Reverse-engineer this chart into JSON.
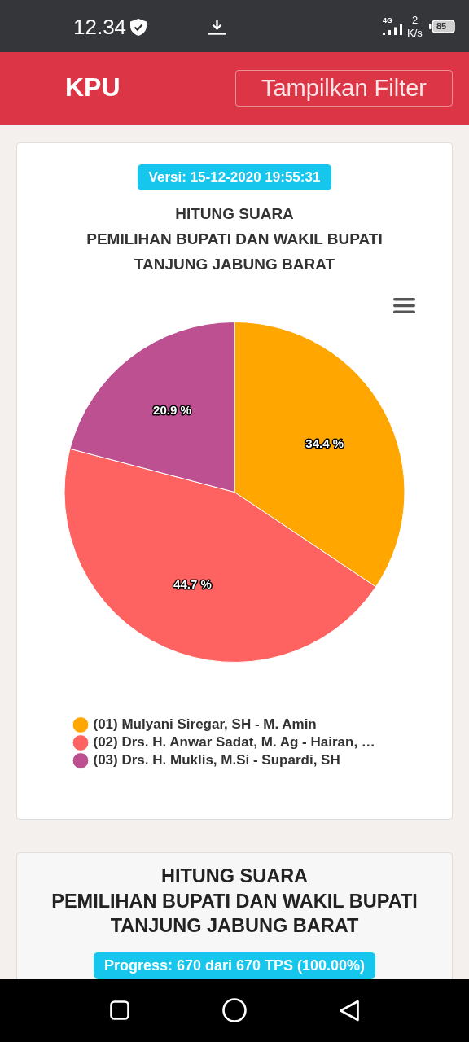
{
  "chart_data": {
    "type": "pie",
    "title": "HITUNG SUARA\nPEMILIHAN BUPATI DAN WAKIL BUPATI\nTANJUNG JABUNG BARAT",
    "subtitle": "Versi: 15-12-2020 19:55:31",
    "categories": [
      "(01) Mulyani Siregar, SH - M. Amin",
      "(02) Drs. H. Anwar Sadat, M. Ag - Hairan, …",
      "(03) Drs. H. Muklis, M.Si - Supardi, SH"
    ],
    "values": [
      34.4,
      44.7,
      20.9
    ],
    "colors": [
      "#ffa600",
      "#ff6361",
      "#bc5090"
    ],
    "value_labels": [
      "34.4 %",
      "44.7 %",
      "20.9 %"
    ],
    "legend": "bottom",
    "annotations": [
      "12.34",
      "4G",
      "2",
      "K/s",
      "85",
      "KPU",
      "Tampilkan Filter",
      "HITUNG SUARA\nPEMILIHAN BUPATI DAN WAKIL BUPATI\nTANJUNG JABUNG BARAT",
      "Progress: 670 dari 670 TPS (100.00%)"
    ]
  }
}
